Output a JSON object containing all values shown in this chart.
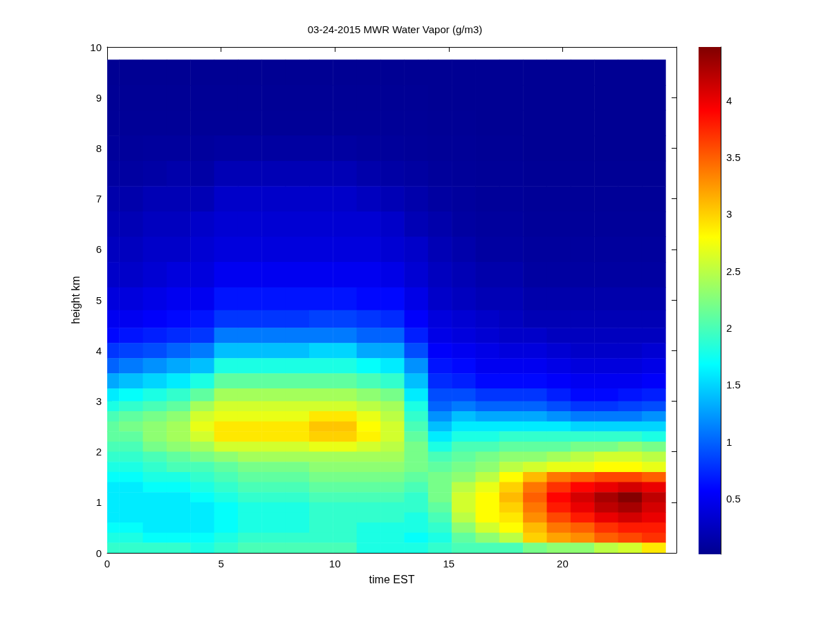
{
  "chart_data": {
    "type": "heatmap",
    "title": "03-24-2015 MWR Water Vapor (g/m3)",
    "xlabel": "time EST",
    "ylabel": "height km",
    "x": [
      0,
      1.04,
      2.09,
      3.13,
      4.17,
      5.22,
      6.26,
      7.3,
      8.35,
      9.39,
      10.43,
      11.48,
      12.52,
      13.57,
      14.61,
      15.65,
      16.7,
      17.74,
      18.78,
      19.83,
      20.87,
      21.91,
      22.96,
      24
    ],
    "y": [
      9.5,
      9,
      8.5,
      8,
      7.5,
      7,
      6.5,
      6,
      5.5,
      5,
      4.6,
      4.3,
      4,
      3.7,
      3.4,
      3.1,
      2.9,
      2.7,
      2.5,
      2.3,
      2.1,
      1.9,
      1.7,
      1.5,
      1.3,
      1.1,
      0.9,
      0.7,
      0.5,
      0.3,
      0.1
    ],
    "xlim": [
      0,
      25
    ],
    "xticks": [
      0,
      5,
      10,
      15,
      20
    ],
    "ylim": [
      0,
      10
    ],
    "yticks": [
      0,
      1,
      2,
      3,
      4,
      5,
      6,
      7,
      8,
      9,
      10
    ],
    "clim": [
      0.01,
      4.47
    ],
    "cticks": [
      0.5,
      1,
      1.5,
      2,
      2.5,
      3,
      3.5,
      4
    ],
    "cells": [
      [
        0.03,
        0.03,
        0.03,
        0.03,
        0.03,
        0.03,
        0.03,
        0.03,
        0.03,
        0.03,
        0.03,
        0.03,
        0.03,
        0.03,
        0.03,
        0.03,
        0.03,
        0.03,
        0.03,
        0.03,
        0.03,
        0.03,
        0.03,
        0.03
      ],
      [
        0.04,
        0.04,
        0.04,
        0.04,
        0.04,
        0.04,
        0.04,
        0.04,
        0.04,
        0.04,
        0.04,
        0.04,
        0.04,
        0.04,
        0.03,
        0.03,
        0.03,
        0.03,
        0.03,
        0.03,
        0.03,
        0.03,
        0.03,
        0.03
      ],
      [
        0.05,
        0.05,
        0.05,
        0.05,
        0.05,
        0.05,
        0.05,
        0.05,
        0.05,
        0.05,
        0.05,
        0.05,
        0.05,
        0.05,
        0.04,
        0.04,
        0.03,
        0.03,
        0.03,
        0.03,
        0.03,
        0.03,
        0.03,
        0.03
      ],
      [
        0.07,
        0.07,
        0.08,
        0.08,
        0.08,
        0.1,
        0.1,
        0.1,
        0.1,
        0.1,
        0.1,
        0.08,
        0.07,
        0.06,
        0.05,
        0.05,
        0.04,
        0.04,
        0.03,
        0.03,
        0.03,
        0.03,
        0.03,
        0.03
      ],
      [
        0.1,
        0.1,
        0.12,
        0.15,
        0.12,
        0.2,
        0.2,
        0.2,
        0.2,
        0.2,
        0.2,
        0.15,
        0.12,
        0.1,
        0.07,
        0.06,
        0.05,
        0.05,
        0.04,
        0.04,
        0.04,
        0.04,
        0.04,
        0.04
      ],
      [
        0.15,
        0.15,
        0.2,
        0.2,
        0.2,
        0.3,
        0.3,
        0.3,
        0.3,
        0.3,
        0.3,
        0.25,
        0.2,
        0.15,
        0.1,
        0.08,
        0.06,
        0.06,
        0.05,
        0.05,
        0.05,
        0.05,
        0.05,
        0.05
      ],
      [
        0.2,
        0.2,
        0.25,
        0.25,
        0.3,
        0.35,
        0.35,
        0.35,
        0.35,
        0.35,
        0.35,
        0.35,
        0.3,
        0.2,
        0.15,
        0.1,
        0.08,
        0.08,
        0.06,
        0.06,
        0.06,
        0.06,
        0.06,
        0.06
      ],
      [
        0.25,
        0.25,
        0.3,
        0.3,
        0.35,
        0.4,
        0.4,
        0.4,
        0.4,
        0.4,
        0.4,
        0.4,
        0.35,
        0.3,
        0.2,
        0.15,
        0.1,
        0.1,
        0.08,
        0.08,
        0.08,
        0.08,
        0.08,
        0.08
      ],
      [
        0.3,
        0.3,
        0.35,
        0.4,
        0.4,
        0.5,
        0.5,
        0.5,
        0.5,
        0.5,
        0.5,
        0.5,
        0.45,
        0.35,
        0.25,
        0.2,
        0.15,
        0.15,
        0.1,
        0.1,
        0.1,
        0.1,
        0.1,
        0.1
      ],
      [
        0.4,
        0.4,
        0.45,
        0.5,
        0.5,
        0.65,
        0.65,
        0.65,
        0.65,
        0.65,
        0.65,
        0.6,
        0.6,
        0.45,
        0.3,
        0.25,
        0.2,
        0.2,
        0.15,
        0.15,
        0.15,
        0.15,
        0.15,
        0.15
      ],
      [
        0.5,
        0.5,
        0.55,
        0.6,
        0.65,
        0.8,
        0.8,
        0.8,
        0.8,
        0.85,
        0.85,
        0.8,
        0.75,
        0.55,
        0.4,
        0.35,
        0.3,
        0.25,
        0.2,
        0.2,
        0.2,
        0.2,
        0.2,
        0.2
      ],
      [
        0.6,
        0.65,
        0.7,
        0.75,
        0.8,
        1.1,
        1.1,
        1.1,
        1.1,
        1.1,
        1.1,
        1.0,
        1.0,
        0.7,
        0.45,
        0.4,
        0.35,
        0.3,
        0.3,
        0.25,
        0.25,
        0.25,
        0.25,
        0.25
      ],
      [
        0.8,
        0.85,
        0.9,
        1.0,
        1.1,
        1.4,
        1.4,
        1.4,
        1.4,
        1.5,
        1.5,
        1.3,
        1.3,
        0.9,
        0.55,
        0.5,
        0.45,
        0.4,
        0.4,
        0.35,
        0.3,
        0.3,
        0.3,
        0.35
      ],
      [
        1.0,
        1.1,
        1.2,
        1.3,
        1.4,
        1.8,
        1.8,
        1.8,
        1.8,
        1.8,
        1.8,
        1.7,
        1.6,
        1.2,
        0.65,
        0.6,
        0.5,
        0.5,
        0.5,
        0.45,
        0.4,
        0.4,
        0.4,
        0.45
      ],
      [
        1.3,
        1.4,
        1.5,
        1.6,
        1.8,
        2.1,
        2.1,
        2.1,
        2.1,
        2.1,
        2.1,
        2.0,
        1.9,
        1.4,
        0.75,
        0.7,
        0.6,
        0.6,
        0.6,
        0.55,
        0.5,
        0.5,
        0.5,
        0.55
      ],
      [
        1.6,
        1.7,
        1.8,
        1.9,
        2.1,
        2.4,
        2.4,
        2.4,
        2.4,
        2.4,
        2.4,
        2.3,
        2.2,
        1.6,
        0.9,
        0.9,
        0.8,
        0.8,
        0.8,
        0.7,
        0.6,
        0.6,
        0.65,
        0.7
      ],
      [
        1.8,
        1.9,
        2.0,
        2.1,
        2.4,
        2.6,
        2.6,
        2.6,
        2.6,
        2.6,
        2.6,
        2.5,
        2.4,
        1.8,
        1.0,
        1.1,
        1.0,
        1.0,
        1.0,
        0.9,
        0.8,
        0.8,
        0.85,
        0.9
      ],
      [
        2.0,
        2.1,
        2.2,
        2.3,
        2.6,
        2.7,
        2.7,
        2.7,
        2.7,
        2.9,
        2.9,
        2.7,
        2.5,
        1.9,
        1.2,
        1.4,
        1.3,
        1.3,
        1.3,
        1.2,
        1.1,
        1.1,
        1.1,
        1.2
      ],
      [
        2.1,
        2.2,
        2.3,
        2.4,
        2.7,
        2.9,
        2.9,
        2.9,
        2.9,
        3.05,
        3.05,
        2.8,
        2.6,
        2.0,
        1.4,
        1.6,
        1.6,
        1.6,
        1.6,
        1.6,
        1.5,
        1.5,
        1.5,
        1.5
      ],
      [
        2.1,
        2.1,
        2.3,
        2.4,
        2.6,
        2.9,
        2.9,
        2.9,
        2.9,
        3.0,
        3.0,
        2.85,
        2.6,
        2.1,
        1.6,
        1.8,
        1.8,
        1.9,
        1.9,
        1.9,
        1.9,
        1.9,
        1.9,
        1.8
      ],
      [
        2.0,
        2.0,
        2.2,
        2.3,
        2.4,
        2.6,
        2.6,
        2.6,
        2.6,
        2.7,
        2.7,
        2.6,
        2.5,
        2.2,
        1.8,
        2.0,
        2.0,
        2.1,
        2.1,
        2.1,
        2.2,
        2.2,
        2.3,
        2.2
      ],
      [
        1.9,
        1.9,
        2.0,
        2.1,
        2.2,
        2.3,
        2.4,
        2.4,
        2.4,
        2.4,
        2.4,
        2.4,
        2.4,
        2.2,
        2.0,
        2.1,
        2.2,
        2.3,
        2.3,
        2.4,
        2.5,
        2.6,
        2.6,
        2.5
      ],
      [
        1.8,
        1.8,
        1.9,
        2.0,
        2.0,
        2.1,
        2.2,
        2.2,
        2.2,
        2.3,
        2.3,
        2.3,
        2.3,
        2.2,
        2.1,
        2.2,
        2.3,
        2.5,
        2.6,
        2.7,
        2.7,
        2.8,
        2.8,
        2.7
      ],
      [
        1.7,
        1.7,
        1.8,
        1.8,
        1.9,
        2.0,
        2.1,
        2.1,
        2.1,
        2.2,
        2.2,
        2.2,
        2.2,
        2.1,
        2.2,
        2.3,
        2.5,
        2.8,
        3.1,
        3.4,
        3.5,
        3.6,
        3.6,
        3.5
      ],
      [
        1.6,
        1.6,
        1.7,
        1.7,
        1.8,
        1.9,
        2.0,
        2.0,
        2.0,
        2.1,
        2.1,
        2.1,
        2.1,
        2.0,
        2.2,
        2.5,
        2.7,
        3.0,
        3.4,
        3.7,
        3.9,
        4.0,
        4.1,
        4.0
      ],
      [
        1.6,
        1.6,
        1.6,
        1.6,
        1.7,
        1.8,
        1.9,
        1.9,
        1.9,
        2.0,
        2.0,
        2.0,
        2.0,
        1.9,
        2.2,
        2.6,
        2.8,
        3.1,
        3.5,
        3.9,
        4.1,
        4.3,
        4.45,
        4.2
      ],
      [
        1.6,
        1.6,
        1.6,
        1.6,
        1.6,
        1.7,
        1.8,
        1.8,
        1.8,
        1.9,
        1.9,
        1.9,
        1.9,
        1.9,
        2.1,
        2.6,
        2.8,
        3.0,
        3.4,
        3.8,
        4.0,
        4.2,
        4.3,
        4.1
      ],
      [
        1.6,
        1.6,
        1.6,
        1.6,
        1.6,
        1.7,
        1.8,
        1.8,
        1.8,
        1.9,
        1.9,
        1.9,
        1.9,
        1.8,
        2.0,
        2.5,
        2.8,
        2.9,
        3.3,
        3.6,
        3.8,
        4.0,
        4.1,
        4.0
      ],
      [
        1.7,
        1.7,
        1.6,
        1.6,
        1.6,
        1.7,
        1.8,
        1.8,
        1.8,
        1.9,
        1.9,
        1.8,
        1.8,
        1.8,
        1.9,
        2.3,
        2.6,
        2.8,
        3.1,
        3.4,
        3.5,
        3.7,
        3.8,
        3.8
      ],
      [
        1.8,
        1.8,
        1.7,
        1.7,
        1.7,
        1.8,
        1.9,
        1.9,
        1.9,
        1.9,
        1.9,
        1.8,
        1.8,
        1.7,
        1.8,
        2.1,
        2.3,
        2.5,
        3.0,
        3.2,
        3.3,
        3.5,
        3.6,
        3.7
      ],
      [
        1.9,
        1.9,
        1.9,
        1.9,
        1.8,
        1.9,
        2.0,
        2.0,
        2.0,
        2.0,
        2.0,
        1.8,
        1.8,
        1.8,
        1.9,
        2.0,
        2.0,
        2.0,
        2.2,
        2.3,
        2.3,
        2.5,
        2.6,
        2.9
      ]
    ]
  }
}
